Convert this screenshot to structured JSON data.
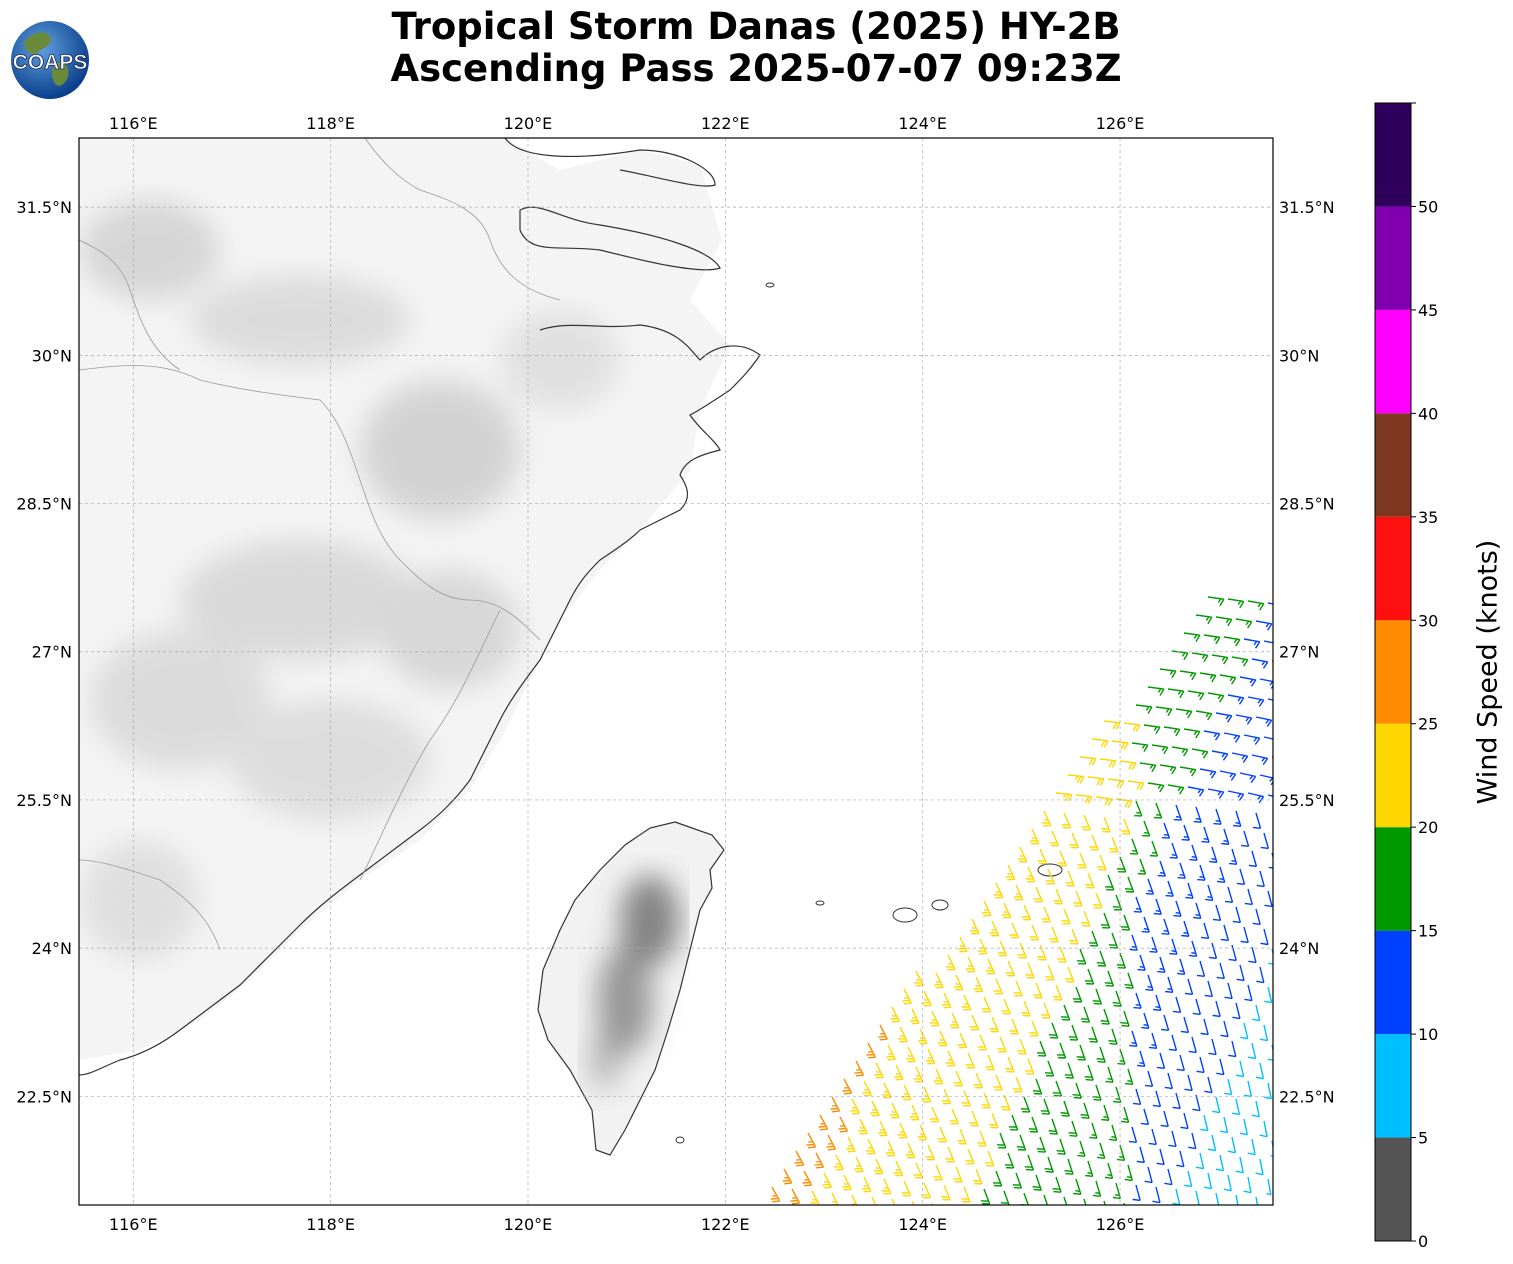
{
  "logo": {
    "text": "COAPS",
    "icon": "globe-logo"
  },
  "title": {
    "line1": "Tropical Storm Danas (2025) HY-2B",
    "line2": "Ascending Pass 2025-07-07 09:23Z"
  },
  "map": {
    "lon_range": [
      115.45,
      127.55
    ],
    "lat_range": [
      21.4,
      32.2
    ],
    "lon_ticks": [
      "116°E",
      "118°E",
      "120°E",
      "122°E",
      "124°E",
      "126°E"
    ],
    "lon_tick_values": [
      116,
      118,
      120,
      122,
      124,
      126
    ],
    "lat_ticks": [
      "31.5°N",
      "30°N",
      "28.5°N",
      "27°N",
      "25.5°N",
      "24°N",
      "22.5°N"
    ],
    "lat_tick_values": [
      31.5,
      30,
      28.5,
      27,
      25.5,
      24,
      22.5
    ],
    "grid": true,
    "background": "grayscale terrain shading over land",
    "barbs": "wind barbs colored by speed"
  },
  "colorbar": {
    "label": "Wind Speed (knots)",
    "tick_labels": [
      "0",
      "5",
      "10",
      "15",
      "20",
      "25",
      "30",
      "35",
      "40",
      "45",
      "50"
    ],
    "tick_values": [
      0,
      5,
      10,
      15,
      20,
      25,
      30,
      35,
      40,
      45,
      50
    ],
    "max": 55,
    "colors": [
      "#555555",
      "#00bfff",
      "#0040ff",
      "#009900",
      "#ffd700",
      "#ff8c00",
      "#ff1010",
      "#7f3820",
      "#ff00ff",
      "#8000b0",
      "#2e005c"
    ]
  }
}
